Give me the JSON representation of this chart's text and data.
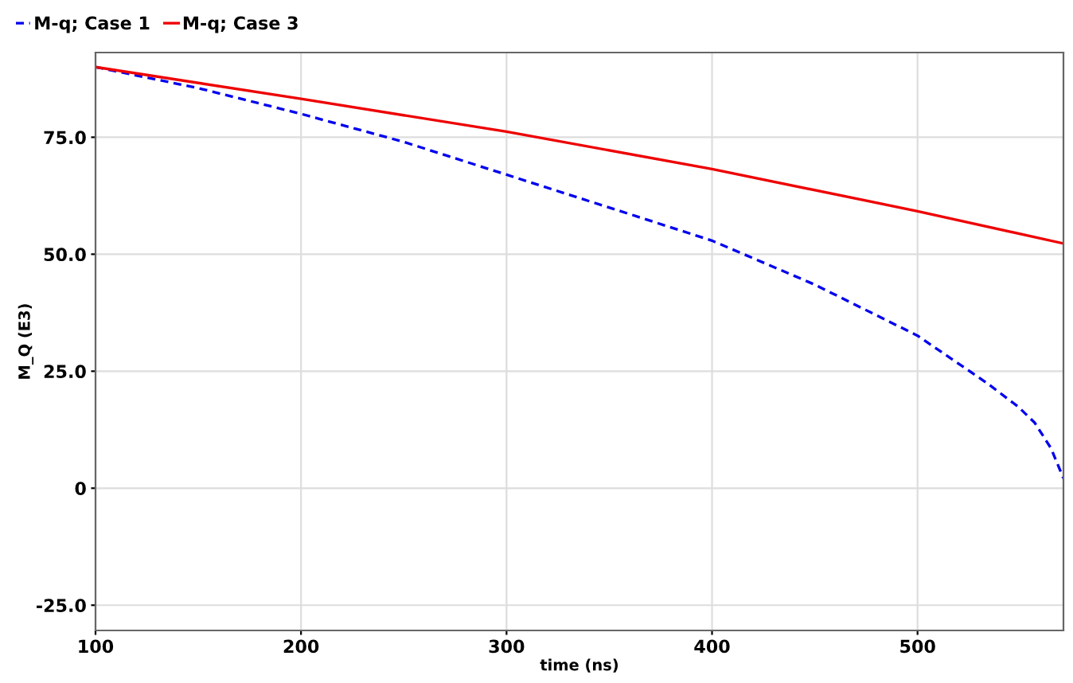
{
  "chart_data": {
    "type": "line",
    "xlabel": "time (ns)",
    "ylabel": "M_Q (E3)",
    "xlim": [
      100,
      571
    ],
    "ylim": [
      -30.4,
      93.1
    ],
    "xticks": [
      100,
      200,
      300,
      400,
      500
    ],
    "yticks": [
      {
        "value": -25,
        "label": "-25.0"
      },
      {
        "value": 0,
        "label": "0"
      },
      {
        "value": 25,
        "label": "25.0"
      },
      {
        "value": 50,
        "label": "50.0"
      },
      {
        "value": 75,
        "label": "75.0"
      }
    ],
    "grid": true,
    "legend": "top left",
    "series": [
      {
        "name": "M-q; Case 1",
        "color": "#0000ee",
        "line_style": "dashed",
        "x": [
          100,
          150,
          200,
          250,
          300,
          364,
          400,
          450,
          500,
          534,
          549,
          557,
          565,
          571
        ],
        "values": [
          90,
          85.5,
          80,
          74,
          67,
          58,
          52.9,
          43.5,
          32.6,
          22.4,
          17.4,
          14,
          8.5,
          2.1
        ]
      },
      {
        "name": "M-q; Case 3",
        "color": "#ee0000",
        "line_style": "solid",
        "x": [
          100,
          200,
          300,
          400,
          500,
          571
        ],
        "values": [
          90,
          83.2,
          76.2,
          68.2,
          59.2,
          52.3
        ]
      }
    ]
  }
}
